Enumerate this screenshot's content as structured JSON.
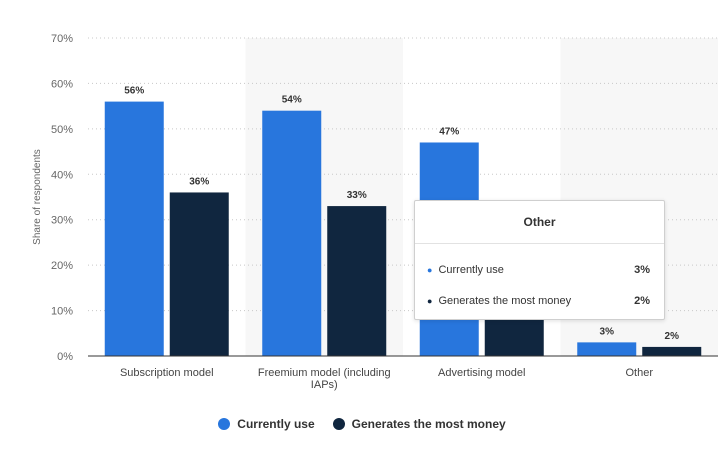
{
  "chart_data": {
    "type": "bar",
    "categories": [
      "Subscription model",
      "Freemium model (including IAPs)",
      "Advertising model",
      "Other"
    ],
    "series": [
      {
        "name": "Currently use",
        "values": [
          56,
          54,
          47,
          3
        ],
        "labels": [
          "56%",
          "54%",
          "47%",
          "3%"
        ],
        "color": "#2876dd"
      },
      {
        "name": "Generates the most money",
        "values": [
          36,
          33,
          19,
          2
        ],
        "labels": [
          "36%",
          "33%",
          "",
          "2%"
        ],
        "color": "#10263f"
      }
    ],
    "ylabel": "Share of respondents",
    "ylim": [
      0,
      70
    ],
    "yticks": [
      "0%",
      "10%",
      "20%",
      "30%",
      "40%",
      "50%",
      "60%",
      "70%"
    ],
    "grid": true,
    "legend_position": "bottom"
  },
  "tooltip": {
    "title": "Other",
    "rows": [
      {
        "name": "Currently use",
        "value": "3%",
        "color": "#2876dd"
      },
      {
        "name": "Generates the most money",
        "value": "2%",
        "color": "#10263f"
      }
    ]
  },
  "legend": {
    "items": [
      {
        "label": "Currently use",
        "color": "#2876dd"
      },
      {
        "label": "Generates the most money",
        "color": "#10263f"
      }
    ]
  }
}
